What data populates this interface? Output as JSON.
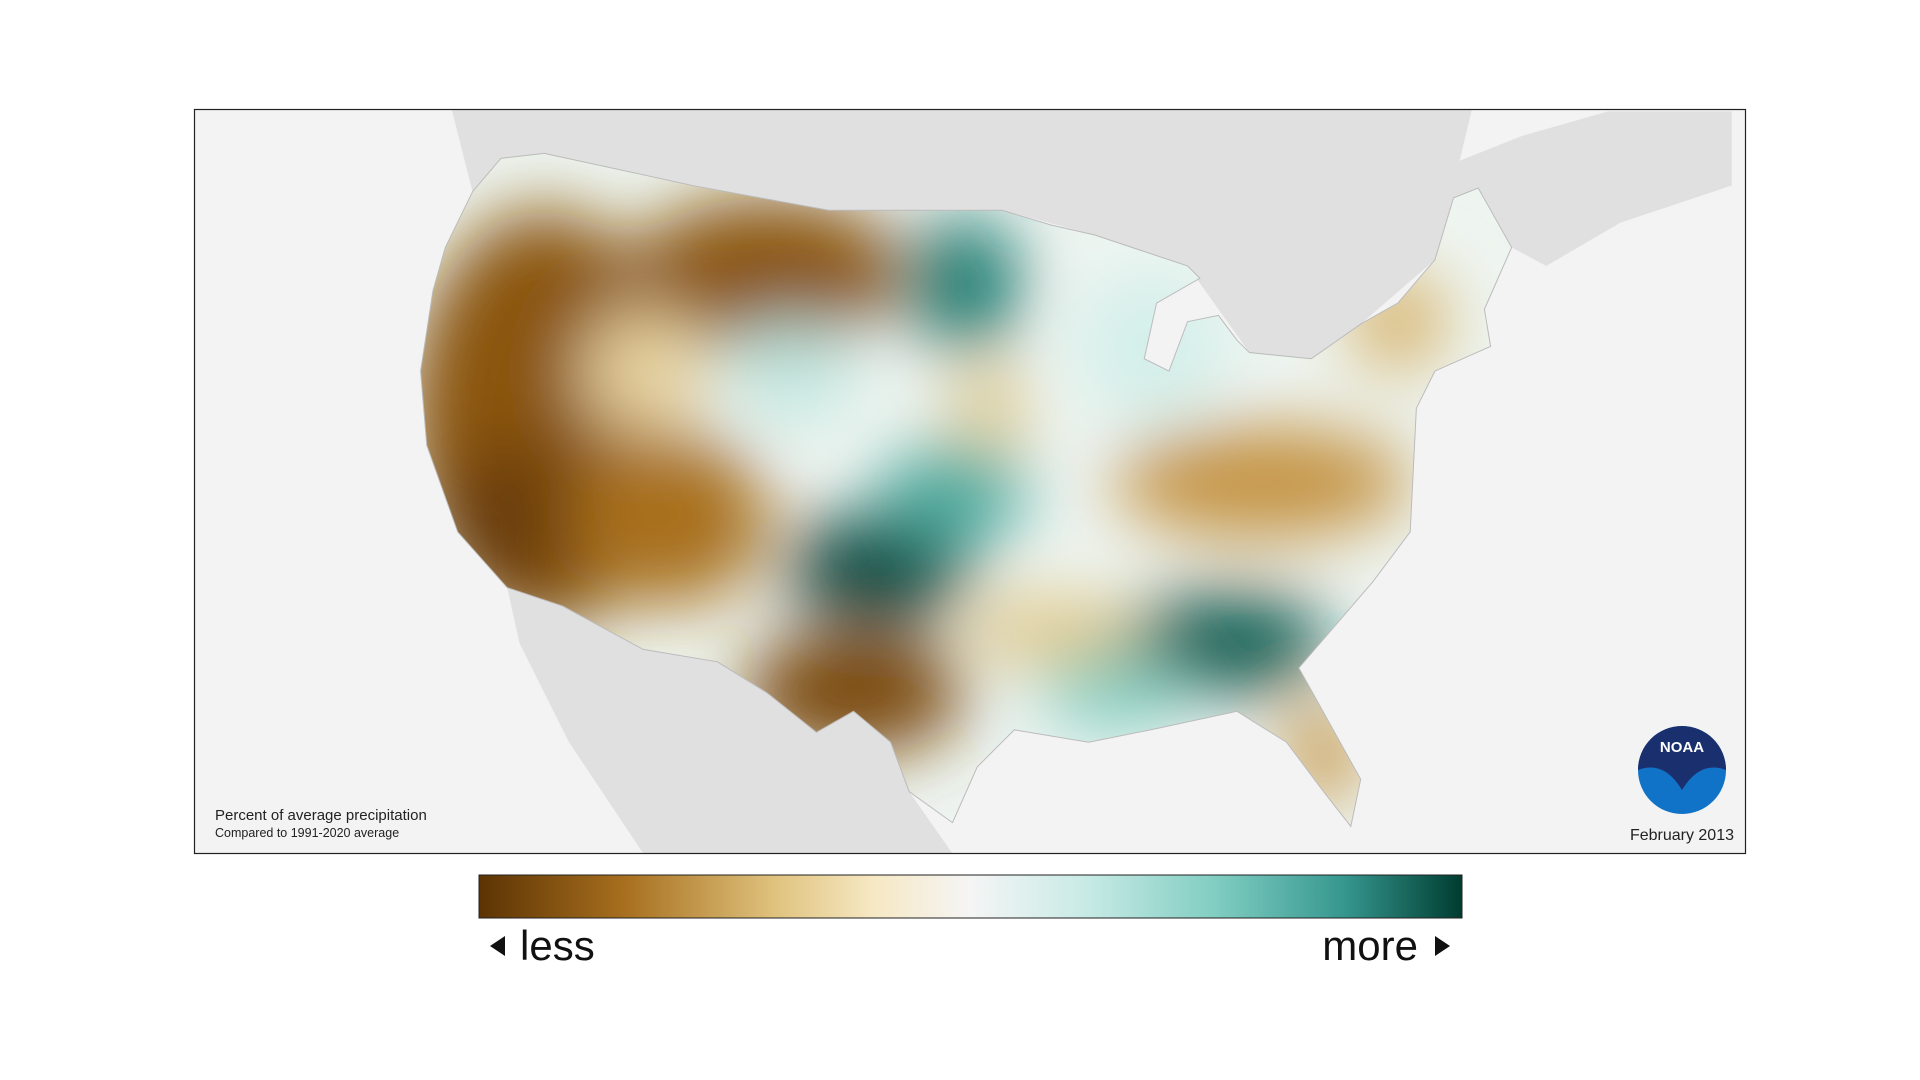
{
  "map": {
    "caption": "Percent of average precipitation",
    "subcaption": "Compared to 1991-2020 average",
    "date": "February 2013",
    "logo": "NOAA"
  },
  "legend": {
    "low_label": "less",
    "high_label": "more"
  }
}
